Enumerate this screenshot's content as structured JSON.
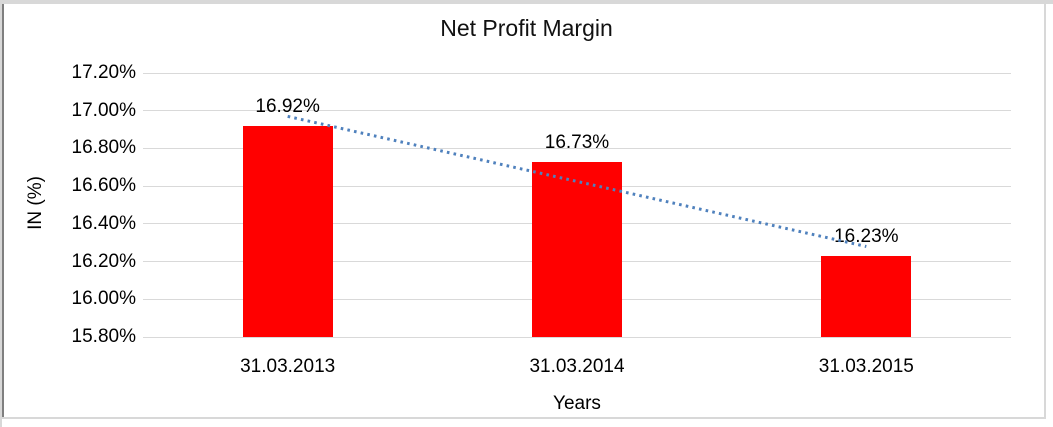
{
  "chart_data": {
    "type": "bar",
    "title": "Net Profit Margin",
    "xlabel": "Years",
    "ylabel": "IN (%)",
    "categories": [
      "31.03.2013",
      "31.03.2014",
      "31.03.2015"
    ],
    "values": [
      16.92,
      16.73,
      16.23
    ],
    "data_labels": [
      "16.92%",
      "16.73%",
      "16.23%"
    ],
    "y_ticks": [
      "17.20%",
      "17.00%",
      "16.80%",
      "16.60%",
      "16.40%",
      "16.20%",
      "16.00%",
      "15.80%"
    ],
    "ylim": [
      15.8,
      17.2
    ],
    "grid": true,
    "legend": "none",
    "bar_color": "#ff0000",
    "gridline_color": "#d9d9d9",
    "trendline": {
      "style": "dotted",
      "color": "#4f81bd",
      "start_value": 16.97,
      "end_value": 16.28
    }
  }
}
